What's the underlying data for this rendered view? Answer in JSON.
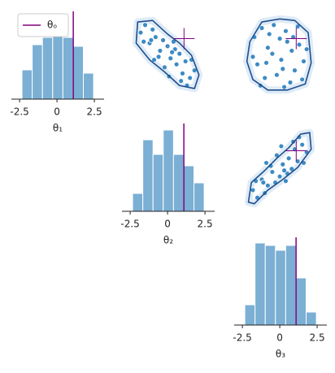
{
  "chart_data": [
    {
      "type": "histogram",
      "xlabel": "θ₁",
      "bins": [
        -2.34,
        -1.656,
        -0.972,
        -0.288,
        0.396,
        1.08,
        1.764,
        2.448
      ],
      "counts": [
        36,
        67,
        76,
        86,
        76,
        65,
        32
      ],
      "xlim": [
        -3.05,
        3.15
      ],
      "ylim": [
        0,
        108
      ],
      "xticks": [
        -2.5,
        0,
        2.5
      ],
      "color": "#7bafd4",
      "observed": 1.09,
      "observed_color": "#800080",
      "legend": {
        "label": "θₒ",
        "loc": "upper left"
      }
    },
    {
      "type": "scatter",
      "x": [
        -1.8,
        -1.5,
        -1.2,
        -1.0,
        -0.8,
        -0.5,
        -0.3,
        0,
        0.2,
        0.4,
        0.6,
        0.8,
        1.0,
        1.2,
        1.5,
        1.8,
        -1.6,
        -0.9,
        -0.2,
        0.5,
        1.3,
        -1.1,
        0.1,
        0.9,
        1.6,
        -0.6,
        0.3
      ],
      "y": [
        1.5,
        2.0,
        0.8,
        1.7,
        1.2,
        0.3,
        1.0,
        0.6,
        -0.2,
        0.9,
        -0.6,
        0.1,
        -1.2,
        -0.4,
        -1.5,
        -1.0,
        0.9,
        -0.3,
        -0.8,
        0.4,
        -2.0,
        1.0,
        -1.4,
        -1.7,
        -0.3,
        -0.1,
        0.2
      ],
      "contour_x": [
        -2.0,
        -1.0,
        0.0,
        0.8,
        1.6,
        2.1,
        1.8,
        0.8,
        -0.2,
        -1.2,
        -2.1
      ],
      "contour_y": [
        2.2,
        2.3,
        1.4,
        0.8,
        0.0,
        -1.3,
        -2.2,
        -2.0,
        -1.1,
        -0.3,
        0.8
      ],
      "xlim": [
        -3.05,
        3.15
      ],
      "ylim": [
        -2.9,
        2.9
      ],
      "color": "#3d8bc4",
      "contour_color": "#1f4e8c",
      "observed": [
        1.1,
        1.1
      ],
      "observed_color": "#800080"
    },
    {
      "type": "scatter",
      "x": [
        -1.7,
        -1.2,
        -0.8,
        -0.4,
        0,
        0.4,
        0.8,
        1.2,
        1.6,
        -1.5,
        -1.0,
        -0.5,
        0.2,
        0.7,
        1.3,
        -1.3,
        -0.2,
        0.5,
        1.0,
        -0.7,
        0.1,
        0.9,
        1.8,
        -1.8,
        0.3,
        -0.9,
        1.5
      ],
      "y": [
        1.2,
        1.8,
        0.5,
        2.0,
        1.1,
        1.6,
        0.3,
        1.9,
        -0.4,
        -0.6,
        -1.5,
        0.1,
        -0.9,
        -1.8,
        0.7,
        -2.0,
        -1.3,
        0.9,
        -1.0,
        1.4,
        -0.3,
        1.2,
        0.4,
        -0.1,
        -2.1,
        -0.5,
        -1.6
      ],
      "contour_x": [
        -2.0,
        -1.2,
        0,
        1.0,
        1.9,
        2.1,
        1.7,
        0.5,
        -0.8,
        -1.8,
        -2.2
      ],
      "contour_y": [
        0.9,
        2.2,
        2.4,
        2.3,
        1.5,
        -0.5,
        -1.9,
        -2.3,
        -2.3,
        -1.6,
        -0.4
      ],
      "xlim": [
        -3.05,
        3.15
      ],
      "ylim": [
        -2.9,
        2.9
      ],
      "color": "#3d8bc4",
      "contour_color": "#1f4e8c",
      "observed": [
        1.1,
        1.1
      ],
      "observed_color": "#800080"
    },
    {
      "type": "histogram",
      "xlabel": "θ₂",
      "bins": [
        -2.34,
        -1.656,
        -0.972,
        -0.288,
        0.396,
        1.08,
        1.764,
        2.448
      ],
      "counts": [
        22,
        88,
        70,
        100,
        70,
        56,
        35
      ],
      "xlim": [
        -3.05,
        3.15
      ],
      "ylim": [
        0,
        108
      ],
      "xticks": [
        -2.5,
        0,
        2.5
      ],
      "color": "#7bafd4",
      "observed": 1.09,
      "observed_color": "#800080"
    },
    {
      "type": "scatter",
      "x": [
        -1.8,
        -1.5,
        -1.2,
        -1.0,
        -0.8,
        -0.5,
        -0.3,
        0,
        0.2,
        0.4,
        0.6,
        0.8,
        1.0,
        1.2,
        1.5,
        1.8,
        -1.6,
        -0.9,
        -0.2,
        0.5,
        1.3,
        -1.1,
        0.1,
        0.9,
        1.6,
        -0.6,
        0.3
      ],
      "y": [
        -1.5,
        -2.0,
        -0.8,
        -1.7,
        -1.2,
        -0.3,
        -1.0,
        -0.6,
        0.2,
        -0.9,
        0.6,
        -0.1,
        1.2,
        0.4,
        1.5,
        1.0,
        -0.9,
        0.3,
        0.8,
        -0.4,
        2.0,
        -1.0,
        1.4,
        1.7,
        0.3,
        0.1,
        -0.2
      ],
      "contour_x": [
        -2.1,
        -1.9,
        -1.0,
        -0.2,
        0.6,
        1.4,
        2.0,
        2.1,
        1.2,
        0.2,
        -0.8,
        -1.7
      ],
      "contour_y": [
        -2.3,
        -1.0,
        -0.2,
        0.6,
        1.3,
        2.2,
        2.3,
        1.2,
        0.0,
        -0.8,
        -1.5,
        -2.4
      ],
      "xlim": [
        -3.05,
        3.15
      ],
      "ylim": [
        -2.9,
        2.9
      ],
      "color": "#3d8bc4",
      "contour_color": "#1f4e8c",
      "observed": [
        1.1,
        1.1
      ],
      "observed_color": "#800080"
    },
    {
      "type": "histogram",
      "xlabel": "θ₃",
      "bins": [
        -2.34,
        -1.656,
        -0.972,
        -0.288,
        0.396,
        1.08,
        1.764,
        2.448
      ],
      "counts": [
        25,
        101,
        98,
        92,
        98,
        58,
        16
      ],
      "xlim": [
        -3.05,
        3.15
      ],
      "ylim": [
        0,
        108
      ],
      "xticks": [
        -2.5,
        0,
        2.5
      ],
      "color": "#7bafd4",
      "observed": 1.09,
      "observed_color": "#800080"
    }
  ]
}
